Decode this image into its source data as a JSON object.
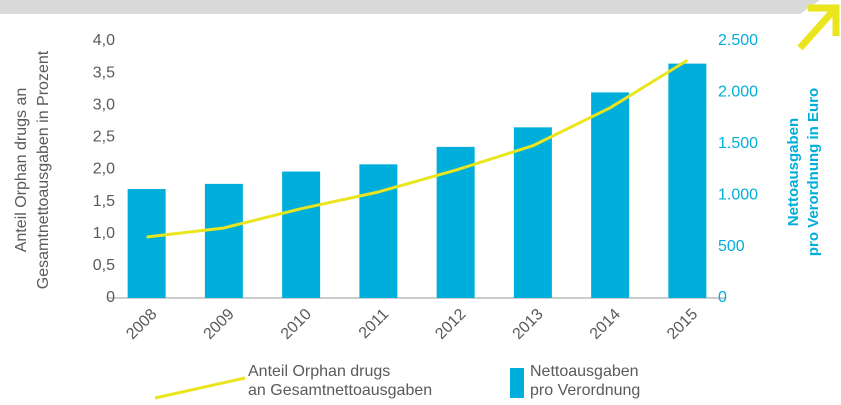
{
  "chart_data": {
    "type": "bar",
    "categories": [
      "2008",
      "2009",
      "2010",
      "2011",
      "2012",
      "2013",
      "2014",
      "2015"
    ],
    "ylabel": [
      "Anteil Orphan drugs an",
      "Gesamtnettoausgaben in Prozent"
    ],
    "y2label": [
      "Nettoausgaben",
      "pro Verordnung in Euro"
    ],
    "ylim": [
      0,
      4
    ],
    "yticks": [
      0,
      {
        "value": 0.5,
        "label": "0,5"
      },
      {
        "value": 1,
        "label": "1,0"
      },
      {
        "value": 1.5,
        "label": "1,5"
      },
      {
        "value": 2,
        "label": "2,0"
      },
      {
        "value": 2.5,
        "label": "2,5"
      },
      {
        "value": 3,
        "label": "3,0"
      },
      {
        "value": 3.5,
        "label": "3,5"
      },
      {
        "value": 4,
        "label": "4,0"
      }
    ],
    "y2lim": [
      0,
      2500
    ],
    "y2ticks": [
      0,
      500,
      {
        "value": 1000,
        "label": "1.000"
      },
      {
        "value": 1500,
        "label": "1.500"
      },
      {
        "value": 2000,
        "label": "2.000"
      },
      {
        "value": 2500,
        "label": "2.500"
      }
    ],
    "series": [
      {
        "name": "Nettoausgaben\npro Verordnung",
        "type": "bar",
        "axis": "y2",
        "color": "#00aedb",
        "values": [
          1060,
          1110,
          1230,
          1300,
          1470,
          1660,
          2000,
          2280
        ]
      },
      {
        "name": "Anteil Orphan drugs\nan Gesamtnettoausgaben",
        "type": "line",
        "axis": "y",
        "color": "#ebe51e",
        "values": [
          0.95,
          1.09,
          1.39,
          1.65,
          1.99,
          2.37,
          2.96,
          3.7
        ]
      }
    ]
  }
}
